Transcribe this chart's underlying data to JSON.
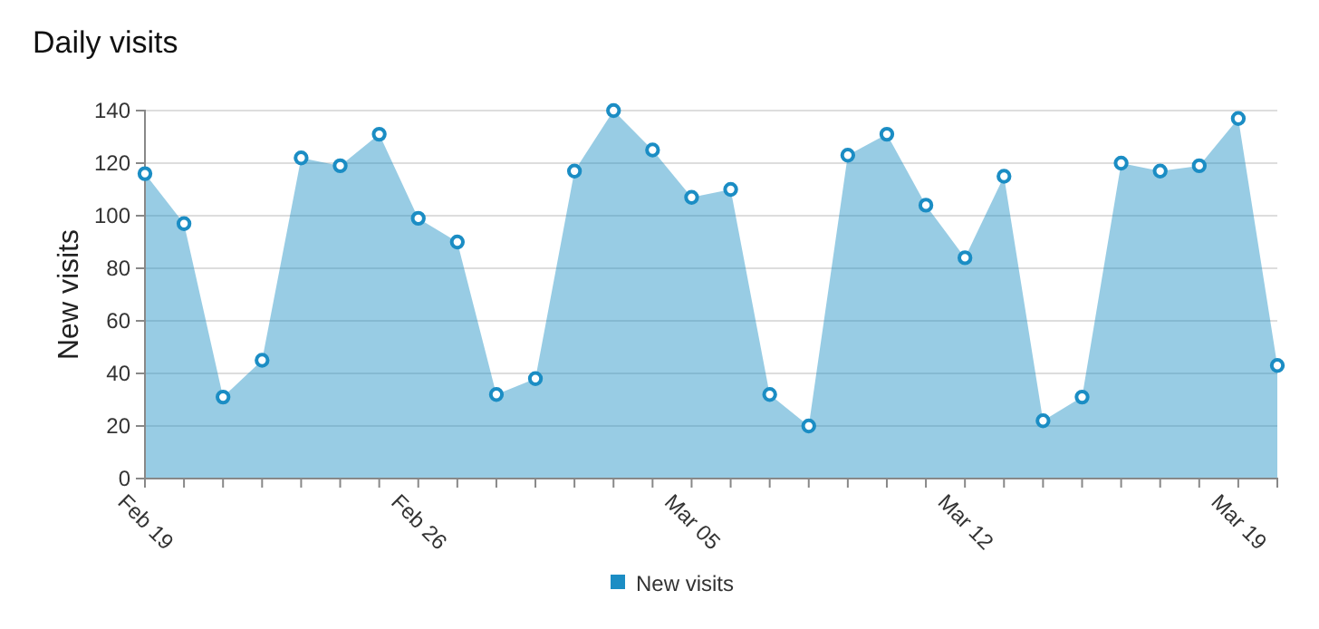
{
  "chart_data": {
    "type": "area",
    "title": "Daily visits",
    "ylabel": "New visits",
    "x": [
      "--02-19",
      "--02-20",
      "--02-21",
      "--02-22",
      "--02-23",
      "--02-24",
      "--02-25",
      "--02-26",
      "--02-27",
      "--02-28",
      "--03-01",
      "--03-02",
      "--03-03",
      "--03-04",
      "--03-05",
      "--03-06",
      "--03-07",
      "--03-08",
      "--03-09",
      "--03-10",
      "--03-11",
      "--03-12",
      "--03-13",
      "--03-14",
      "--03-15",
      "--03-16",
      "--03-17",
      "--03-18",
      "--03-19",
      "--03-20"
    ],
    "series": [
      {
        "name": "New visits",
        "color": "#1b8dc4",
        "values": [
          116,
          97,
          31,
          45,
          122,
          119,
          131,
          99,
          90,
          32,
          38,
          117,
          140,
          125,
          107,
          110,
          32,
          20,
          123,
          131,
          104,
          84,
          115,
          22,
          31,
          120,
          117,
          119,
          137,
          43
        ]
      }
    ],
    "xlim": [
      "--02-19",
      "--03-20"
    ],
    "xticks": [
      {
        "value": "--02-19",
        "label": "Feb 19"
      },
      {
        "value": "--02-20",
        "label": null
      },
      {
        "value": "--02-21",
        "label": null
      },
      {
        "value": "--02-22",
        "label": null
      },
      {
        "value": "--02-23",
        "label": null
      },
      {
        "value": "--02-24",
        "label": null
      },
      {
        "value": "--02-25",
        "label": null
      },
      {
        "value": "--02-26",
        "label": "Feb 26"
      },
      {
        "value": "--02-27",
        "label": null
      },
      {
        "value": "--02-28",
        "label": null
      },
      {
        "value": "--03-01",
        "label": null
      },
      {
        "value": "--03-02",
        "label": null
      },
      {
        "value": "--03-03",
        "label": null
      },
      {
        "value": "--03-04",
        "label": null
      },
      {
        "value": "--03-05",
        "label": "Mar 05"
      },
      {
        "value": "--03-06",
        "label": null
      },
      {
        "value": "--03-07",
        "label": null
      },
      {
        "value": "--03-08",
        "label": null
      },
      {
        "value": "--03-09",
        "label": null
      },
      {
        "value": "--03-10",
        "label": null
      },
      {
        "value": "--03-11",
        "label": null
      },
      {
        "value": "--03-12",
        "label": "Mar 12"
      },
      {
        "value": "--03-13",
        "label": null
      },
      {
        "value": "--03-14",
        "label": null
      },
      {
        "value": "--03-15",
        "label": null
      },
      {
        "value": "--03-16",
        "label": null
      },
      {
        "value": "--03-17",
        "label": null
      },
      {
        "value": "--03-18",
        "label": null
      },
      {
        "value": "--03-19",
        "label": "Mar 19"
      },
      {
        "value": "--03-20",
        "label": null
      }
    ],
    "ylim": [
      0,
      140
    ],
    "yticks": [
      0,
      20,
      40,
      60,
      80,
      100,
      120,
      140
    ],
    "grid": "y",
    "legend": "bottom",
    "marker": "circle"
  }
}
